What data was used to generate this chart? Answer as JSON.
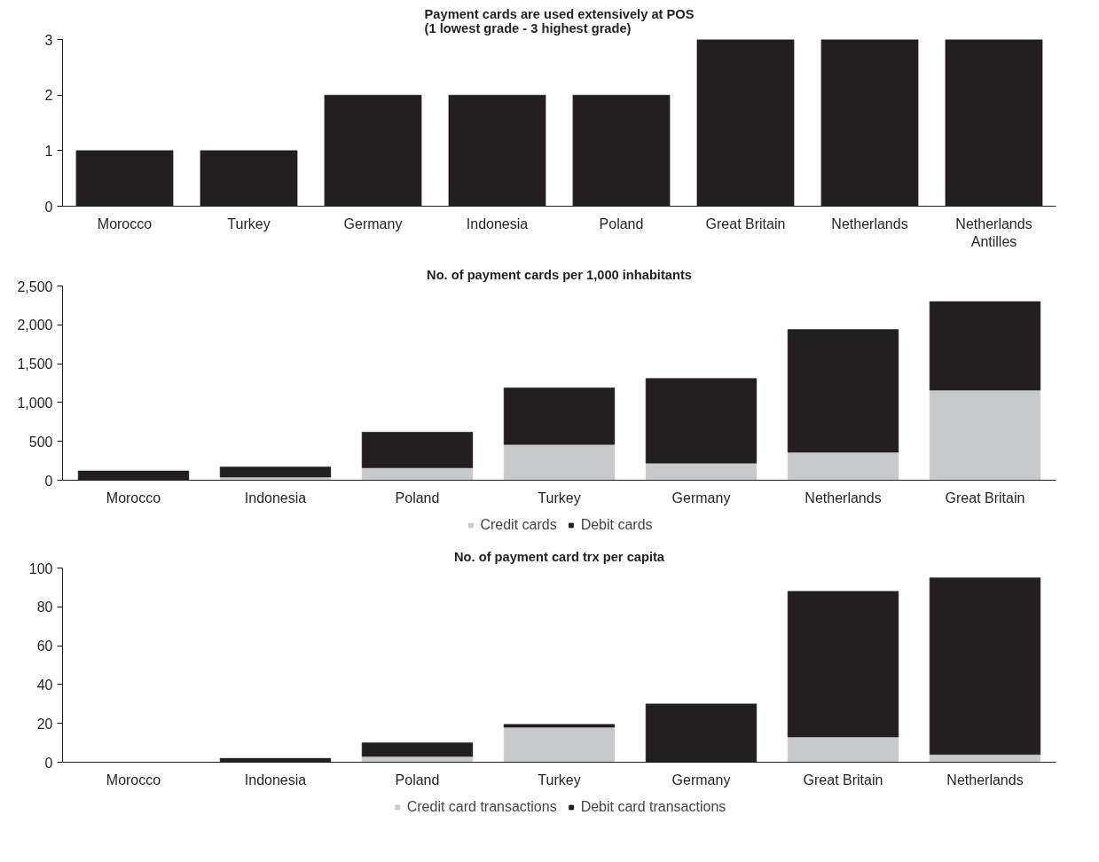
{
  "chart_data": [
    {
      "type": "bar",
      "title": "Payment cards are used extensively at POS\n(1 lowest grade - 3 highest grade)",
      "categories": [
        "Morocco",
        "Turkey",
        "Germany",
        "Indonesia",
        "Poland",
        "Great Britain",
        "Netherlands",
        "Netherlands Antilles"
      ],
      "series": [
        {
          "color": "#231f20",
          "values": [
            1,
            1,
            2,
            2,
            2,
            3,
            3,
            3
          ]
        }
      ],
      "ylim": [
        0,
        3
      ],
      "yticks": [
        0,
        1,
        2,
        3
      ],
      "grid": false,
      "legend": false
    },
    {
      "type": "bar",
      "stacked": true,
      "title": "No. of payment cards per 1,000 inhabitants",
      "categories": [
        "Morocco",
        "Indonesia",
        "Poland",
        "Turkey",
        "Germany",
        "Netherlands",
        "Great Britain"
      ],
      "series": [
        {
          "name": "Credit cards",
          "color": "#c8c9ca",
          "values": [
            0,
            40,
            160,
            460,
            220,
            360,
            1160
          ]
        },
        {
          "name": "Debit cards",
          "color": "#231f20",
          "values": [
            120,
            130,
            460,
            730,
            1090,
            1580,
            1140
          ]
        }
      ],
      "ylim": [
        0,
        2500
      ],
      "yticks": [
        {
          "value": 0,
          "label": "0"
        },
        {
          "value": 500,
          "label": "500"
        },
        {
          "value": 1000,
          "label": "1,000"
        },
        {
          "value": 1500,
          "label": "1,500"
        },
        {
          "value": 2000,
          "label": "2,000"
        },
        {
          "value": 2500,
          "label": "2,500"
        }
      ],
      "grid": false,
      "legend": "bottom"
    },
    {
      "type": "bar",
      "stacked": true,
      "title": "No. of payment card trx per capita",
      "categories": [
        "Morocco",
        "Indonesia",
        "Poland",
        "Turkey",
        "Germany",
        "Great Britain",
        "Netherlands"
      ],
      "series": [
        {
          "name": "Credit card transactions",
          "color": "#c8c9ca",
          "values": [
            0,
            null,
            3,
            18,
            0,
            13,
            4
          ]
        },
        {
          "name": "Debit card transactions",
          "color": "#231f20",
          "values": [
            0,
            2,
            7,
            1.5,
            30,
            75,
            91
          ]
        }
      ],
      "ylim": [
        0,
        100
      ],
      "yticks": [
        0,
        20,
        40,
        60,
        80,
        100
      ],
      "grid": false,
      "legend": "bottom"
    }
  ]
}
